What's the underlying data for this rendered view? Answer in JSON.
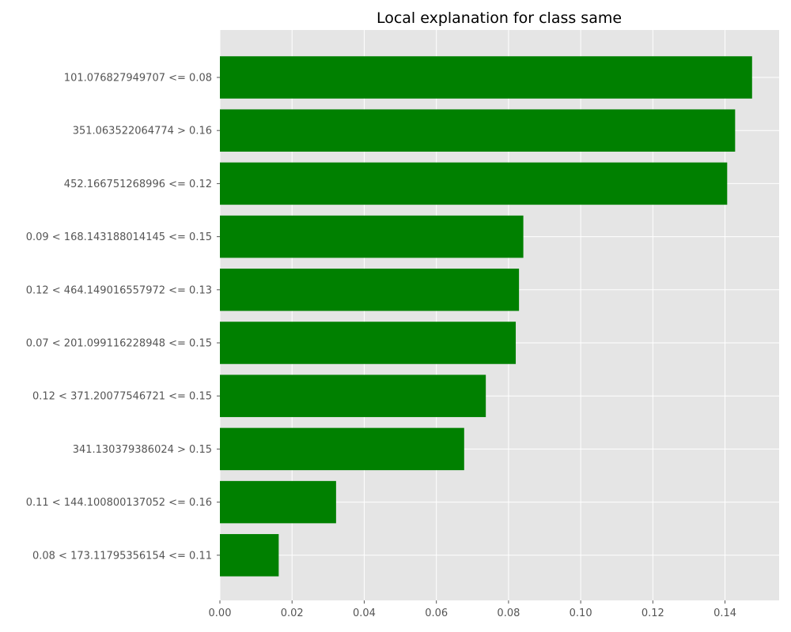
{
  "chart_data": {
    "type": "bar",
    "orientation": "horizontal",
    "title": "Local explanation for class same",
    "xlabel": "",
    "ylabel": "",
    "xlim": [
      0,
      0.155
    ],
    "xticks": [
      0.0,
      0.02,
      0.04,
      0.06,
      0.08,
      0.1,
      0.12,
      0.14
    ],
    "xtick_labels": [
      "0.00",
      "0.02",
      "0.04",
      "0.06",
      "0.08",
      "0.10",
      "0.12",
      "0.14"
    ],
    "grid": true,
    "colors": {
      "bar": "#008000",
      "plot_background": "#e5e5e5",
      "grid": "#ffffff",
      "text": "#555555",
      "title": "#000000"
    },
    "categories": [
      "101.076827949707 <= 0.08",
      "351.063522064774 > 0.16",
      "452.166751268996 <= 0.12",
      "0.09 < 168.143188014145 <= 0.15",
      "0.12 < 464.149016557972 <= 0.13",
      "0.07 < 201.099116228948 <= 0.15",
      "0.12 < 371.20077546721 <= 0.15",
      "341.130379386024 > 0.15",
      "0.11 < 144.100800137052 <= 0.16",
      "0.08 < 173.11795356154 <= 0.11"
    ],
    "values": [
      0.1475,
      0.1428,
      0.1406,
      0.0841,
      0.0829,
      0.082,
      0.0737,
      0.0677,
      0.0322,
      0.0163
    ]
  }
}
